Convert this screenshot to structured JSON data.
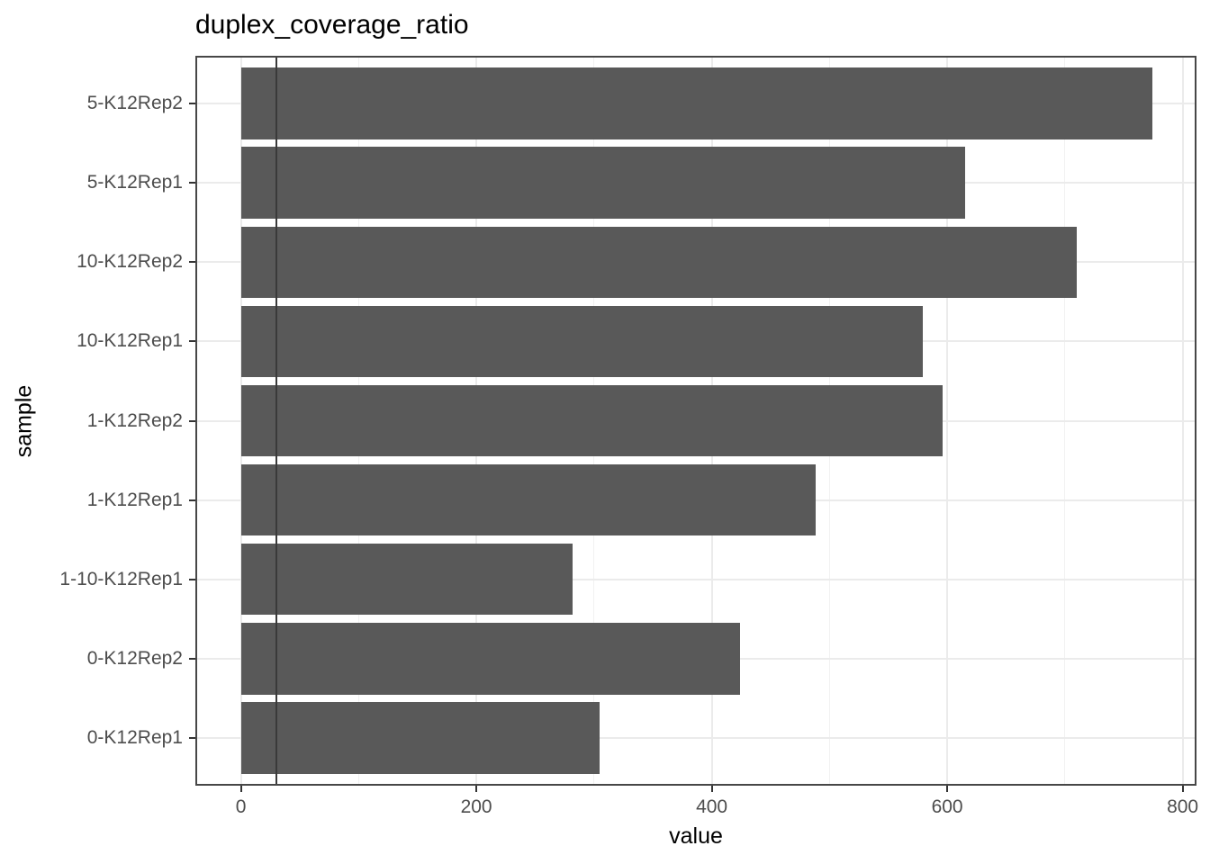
{
  "title": "duplex_coverage_ratio",
  "chart_data": {
    "type": "bar",
    "orientation": "horizontal",
    "title": "duplex_coverage_ratio",
    "xlabel": "value",
    "ylabel": "sample",
    "categories": [
      "5-K12Rep2",
      "5-K12Rep1",
      "10-K12Rep2",
      "10-K12Rep1",
      "1-K12Rep2",
      "1-K12Rep1",
      "1-10-K12Rep1",
      "0-K12Rep2",
      "0-K12Rep1"
    ],
    "values": [
      774,
      615,
      710,
      579,
      596,
      488,
      282,
      424,
      305
    ],
    "xlim": [
      0,
      800
    ],
    "x_ticks": [
      0,
      200,
      400,
      600,
      800
    ],
    "x_tick_labels": [
      "0",
      "200",
      "400",
      "600",
      "800"
    ],
    "x_minor_gridlines": [
      100,
      300,
      500,
      700
    ],
    "reference_line_x": 30,
    "grid": true,
    "legend": "none",
    "panel_background": "#ffffff",
    "colors": {
      "bar": "#595959",
      "reference_line": "#3a3a3a",
      "grid_major": "#ebebeb",
      "grid_minor": "#f1f1f1",
      "panel_border": "#474747",
      "tick_mark": "#333333",
      "tick_text": "#4d4d4d",
      "axis_title_text": "#000000",
      "title_text": "#000000"
    }
  }
}
